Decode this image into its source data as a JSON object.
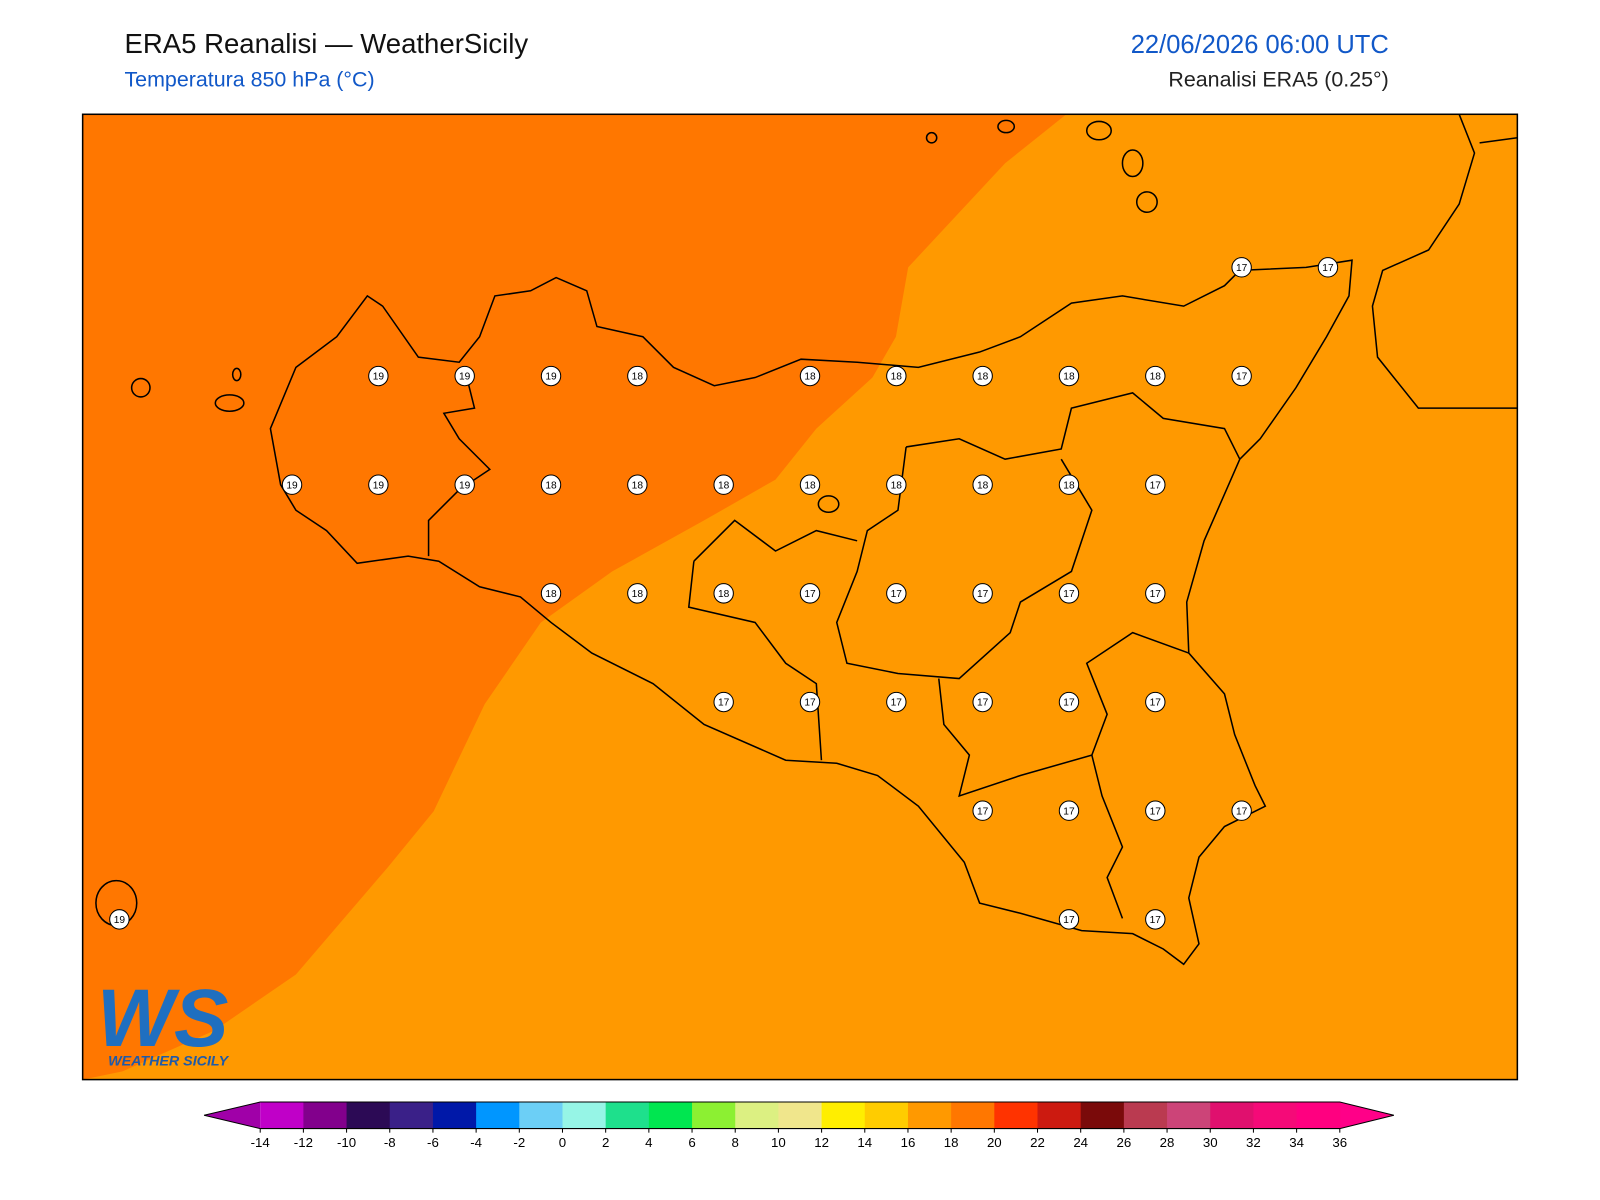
{
  "header": {
    "title": "ERA5 Reanalisi — WeatherSicily",
    "subtitle": "Temperatura 850 hPa (°C)",
    "datetime": "22/06/2026 06:00 UTC",
    "source": "Reanalisi ERA5 (0.25°)"
  },
  "stations": [
    17,
    17,
    19,
    19,
    19,
    18,
    18,
    18,
    18,
    18,
    18,
    17,
    19,
    19,
    19,
    18,
    18,
    18,
    18,
    18,
    18,
    18,
    17,
    18,
    18,
    18,
    17,
    17,
    17,
    17,
    17,
    17,
    17,
    17,
    17,
    17,
    17,
    17,
    17,
    17,
    17,
    19,
    17,
    17
  ],
  "logo": {
    "mark": "WS",
    "text": "WEATHER SICILY"
  },
  "colorbar": {
    "ticks": [
      -14,
      -12,
      -10,
      -8,
      -6,
      -4,
      -2,
      0,
      2,
      4,
      6,
      8,
      10,
      12,
      14,
      16,
      18,
      20,
      22,
      24,
      26,
      28,
      30,
      32,
      34,
      36
    ],
    "colors": [
      "#c000c8",
      "#82008c",
      "#2c0a55",
      "#3a2088",
      "#0018a8",
      "#0096ff",
      "#6ccff6",
      "#96f5e6",
      "#1ee08c",
      "#00e650",
      "#8cf032",
      "#dcf082",
      "#f0e68c",
      "#ffee00",
      "#ffcc00",
      "#ff9900",
      "#ff7700",
      "#ff3300",
      "#cc1a10",
      "#7a0a0a",
      "#ba3a50",
      "#cc4478",
      "#e0106e",
      "#f50a78",
      "#ff0080"
    ],
    "under": "#a000a8",
    "over": "#ff0088"
  }
}
